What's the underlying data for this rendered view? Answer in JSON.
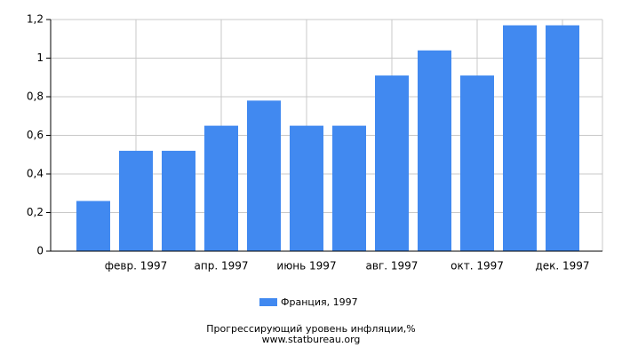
{
  "chart_data": {
    "type": "bar",
    "title": "Прогрессирующий уровень инфляции,%",
    "source": "www.statbureau.org",
    "categories": [
      null,
      "февр. 1997",
      null,
      "апр. 1997",
      null,
      "июнь 1997",
      null,
      "авг. 1997",
      null,
      "окт. 1997",
      null,
      "дек. 1997"
    ],
    "series": [
      {
        "name": "Франция, 1997",
        "color": "#4189f0",
        "values": [
          0.26,
          0.52,
          0.52,
          0.65,
          0.78,
          0.65,
          0.65,
          0.91,
          1.04,
          0.91,
          1.17,
          1.17
        ]
      }
    ],
    "ylim": [
      0,
      1.2
    ],
    "yticks": [
      0,
      {
        "value": 0.2,
        "label": "0,2"
      },
      {
        "value": 0.4,
        "label": "0,4"
      },
      {
        "value": 0.6,
        "label": "0,6"
      },
      {
        "value": 0.8,
        "label": "0,8"
      },
      1,
      {
        "value": 1.2,
        "label": "1,2"
      }
    ],
    "grid": true
  }
}
